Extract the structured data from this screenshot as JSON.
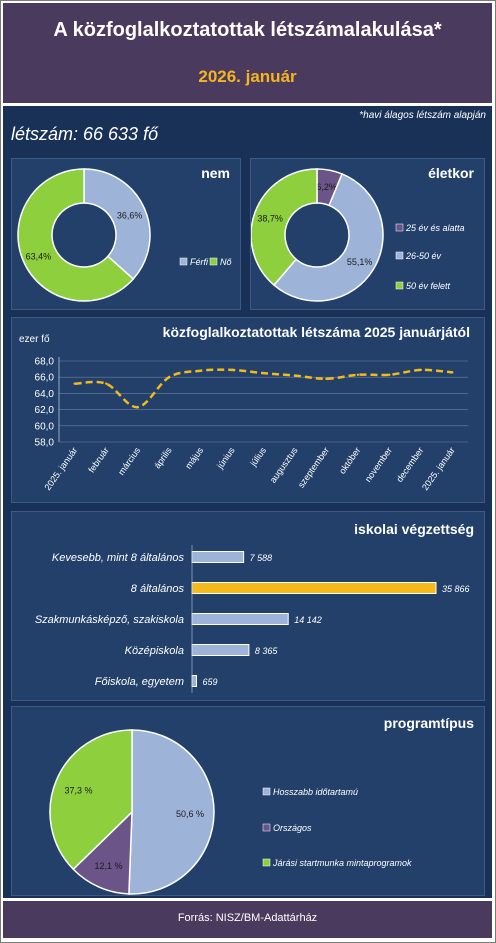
{
  "header": {
    "title": "A közfoglalkoztatottak létszámalakulása*",
    "date": "2026. január"
  },
  "note": "*havi álagos létszám alapján",
  "headcount": "létszám:  66 633 fő",
  "footer": {
    "source": "Forrás: NISZ/BM-Adattárház"
  },
  "colors": {
    "blue": "#9db4d8",
    "green": "#8ecf3e",
    "purple": "#6b5488",
    "yellow": "#f4b91a"
  },
  "chart_data": [
    {
      "type": "pie",
      "subtype": "donut",
      "title": "nem",
      "slices": [
        {
          "name": "Férfi",
          "value": 36.6,
          "label": "36,6%",
          "color": "#9db4d8"
        },
        {
          "name": "Nő",
          "value": 63.4,
          "label": "63,4%",
          "color": "#8ecf3e"
        }
      ]
    },
    {
      "type": "pie",
      "subtype": "donut",
      "title": "életkor",
      "slices": [
        {
          "name": "25 év és alatta",
          "value": 6.2,
          "label": "6,2%",
          "color": "#6b5488"
        },
        {
          "name": "26-50 év",
          "value": 55.1,
          "label": "55,1%",
          "color": "#9db4d8"
        },
        {
          "name": "50 év felett",
          "value": 38.7,
          "label": "38,7%",
          "color": "#8ecf3e"
        }
      ]
    },
    {
      "type": "line",
      "title": "közfoglalkoztatottak létszáma 2025 januárjától",
      "ylabel": "ezer fő",
      "ylim": [
        58,
        68
      ],
      "yticks": [
        "58,0",
        "60,0",
        "62,0",
        "64,0",
        "66,0",
        "68,0"
      ],
      "categories": [
        "2025. január",
        "február",
        "március",
        "április",
        "május",
        "június",
        "július",
        "augusztus",
        "szeptember",
        "október",
        "november",
        "december",
        "2025. január"
      ],
      "values": [
        65.2,
        65.2,
        62.3,
        66.0,
        66.8,
        66.9,
        66.5,
        66.2,
        65.8,
        66.3,
        66.3,
        66.9,
        66.6
      ],
      "color": "#f4b91a"
    },
    {
      "type": "bar",
      "orientation": "horizontal",
      "title": "iskolai végzettség",
      "categories": [
        "Kevesebb, mint 8 általános",
        "8 általános",
        "Szakmunkásképző, szakiskola",
        "Középiskola",
        "Főiskola, egyetem"
      ],
      "values": [
        7588,
        35866,
        14142,
        8365,
        659
      ],
      "value_labels": [
        "7 588",
        "35 866",
        "14 142",
        "8 365",
        "659"
      ],
      "highlight_index": 1
    },
    {
      "type": "pie",
      "title": "programtípus",
      "slices": [
        {
          "name": "Hosszabb időtartamú",
          "value": 50.6,
          "label": "50,6 %",
          "color": "#9db4d8"
        },
        {
          "name": "Országos",
          "value": 12.1,
          "label": "12,1 %",
          "color": "#6b5488"
        },
        {
          "name": "Járási startmunka mintaprogramok",
          "value": 37.3,
          "label": "37,3 %",
          "color": "#8ecf3e"
        }
      ]
    }
  ]
}
